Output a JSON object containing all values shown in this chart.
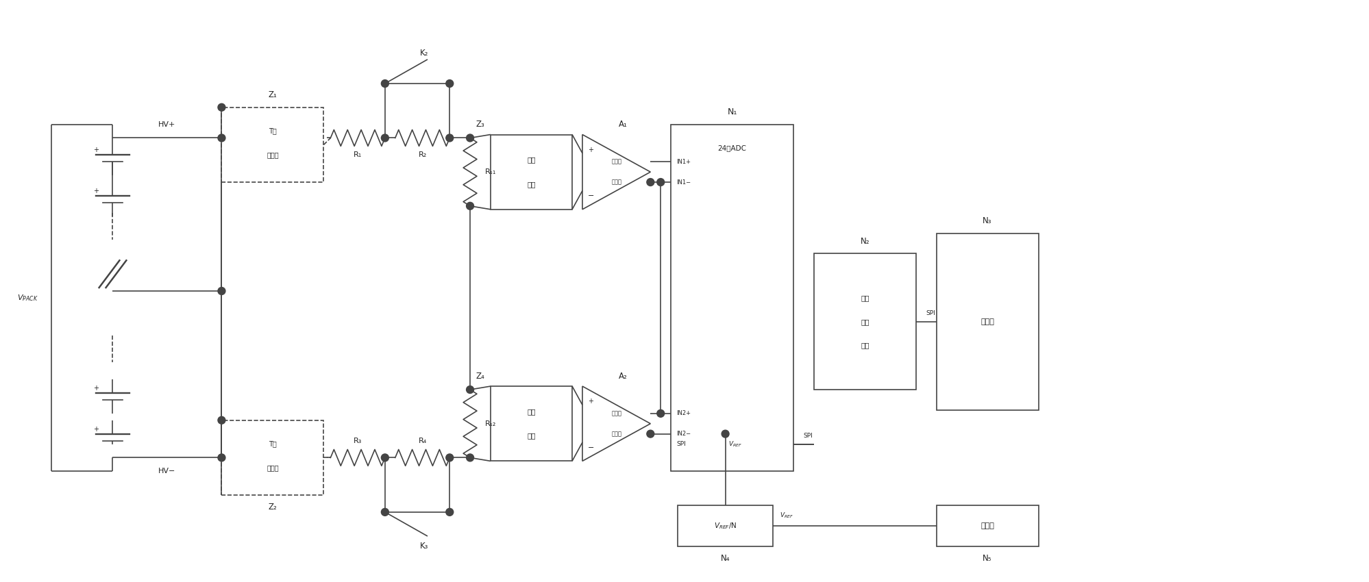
{
  "bg_color": "#ffffff",
  "lc": "#444444",
  "tc": "#222222",
  "lw": 1.2,
  "figsize": [
    19.98,
    8.5
  ],
  "dpi": 100,
  "xlim": [
    0,
    200
  ],
  "ylim": [
    0,
    85
  ]
}
